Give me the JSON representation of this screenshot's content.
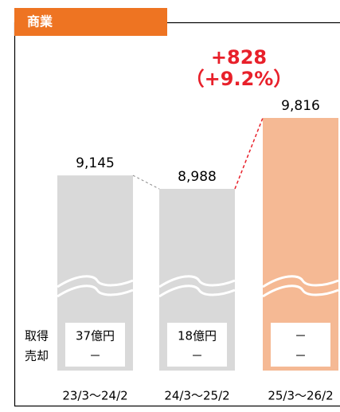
{
  "chart_data": {
    "type": "bar",
    "title": "商業",
    "categories": [
      "23/3～24/2",
      "24/3～25/2",
      "25/3～26/2"
    ],
    "values": [
      9145,
      8988,
      9816
    ],
    "value_labels": [
      "9,145",
      "8,988",
      "9,816"
    ],
    "colors": [
      "#d9d9d9",
      "#d9d9d9",
      "#f5b994"
    ],
    "annotation": [
      "+828",
      "（+9.2%）"
    ],
    "row_labels": [
      "取得",
      "売却"
    ],
    "rows": [
      [
        "37億円",
        "－"
      ],
      [
        "18億円",
        "－"
      ],
      [
        "－",
        "－"
      ]
    ]
  }
}
